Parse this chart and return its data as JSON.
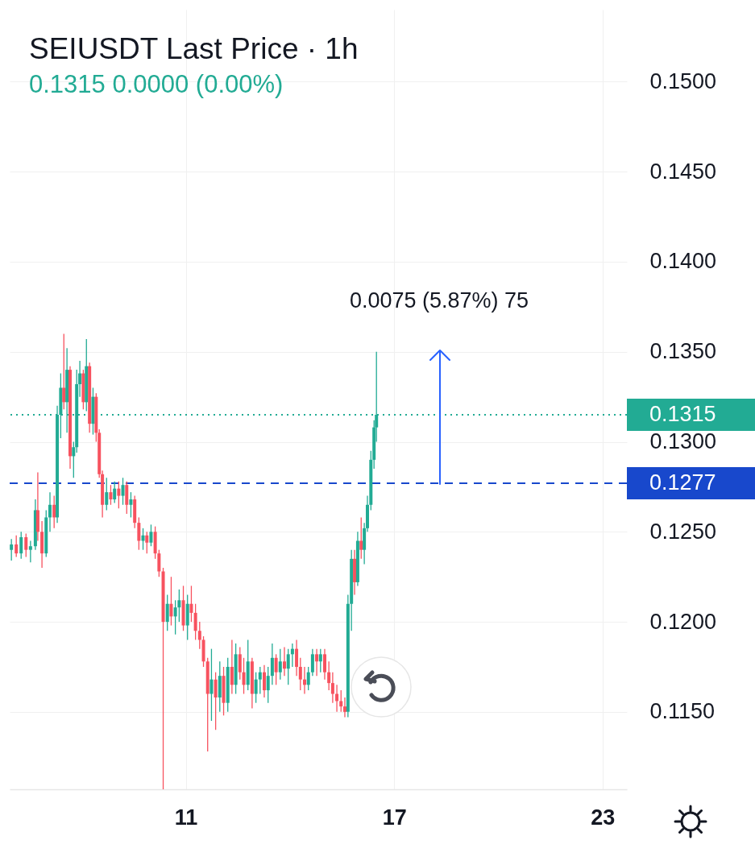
{
  "chart_data": {
    "type": "candlestick",
    "title": "SEIUSDT Last Price · 1h",
    "subtitle": "0.1315 0.0000 (0.00%)",
    "x": [
      5.98,
      6.12,
      6.26,
      6.4,
      6.53,
      6.67,
      6.74,
      6.86,
      6.98,
      7.09,
      7.21,
      7.3,
      7.4,
      7.49,
      7.58,
      7.67,
      7.77,
      7.86,
      7.95,
      8.05,
      8.14,
      8.23,
      8.33,
      8.42,
      8.51,
      8.6,
      8.72,
      8.84,
      8.95,
      9.07,
      9.19,
      9.3,
      9.42,
      9.53,
      9.65,
      9.77,
      9.88,
      10.0,
      10.12,
      10.23,
      10.35,
      10.47,
      10.58,
      10.7,
      10.81,
      10.93,
      11.05,
      11.16,
      11.28,
      11.4,
      11.51,
      11.63,
      11.74,
      11.86,
      11.98,
      12.09,
      12.21,
      12.33,
      12.44,
      12.56,
      12.67,
      12.79,
      12.91,
      13.02,
      13.14,
      13.26,
      13.37,
      13.49,
      13.6,
      13.72,
      13.84,
      13.95,
      14.07,
      14.19,
      14.3,
      14.42,
      14.53,
      14.65,
      14.77,
      14.88,
      15.0,
      15.12,
      15.23,
      15.35,
      15.47,
      15.58,
      15.67,
      15.77,
      15.86,
      15.95,
      16.05,
      16.14,
      16.23,
      16.33,
      16.42,
      16.49
    ],
    "ohlc": [
      [
        0.124,
        0.1246,
        0.1234,
        0.1243
      ],
      [
        0.1243,
        0.1248,
        0.1236,
        0.1238
      ],
      [
        0.1238,
        0.125,
        0.1235,
        0.1247
      ],
      [
        0.1247,
        0.1249,
        0.1236,
        0.124
      ],
      [
        0.124,
        0.1245,
        0.1233,
        0.1242
      ],
      [
        0.1242,
        0.1268,
        0.124,
        0.1262
      ],
      [
        0.1262,
        0.1283,
        0.1245,
        0.125
      ],
      [
        0.125,
        0.1256,
        0.123,
        0.1238
      ],
      [
        0.1238,
        0.1262,
        0.1236,
        0.1258
      ],
      [
        0.1258,
        0.1272,
        0.125,
        0.1265
      ],
      [
        0.1265,
        0.127,
        0.1252,
        0.1258
      ],
      [
        0.1258,
        0.132,
        0.1255,
        0.1315
      ],
      [
        0.1315,
        0.1338,
        0.1302,
        0.133
      ],
      [
        0.133,
        0.136,
        0.1318,
        0.1322
      ],
      [
        0.1322,
        0.1352,
        0.1305,
        0.134
      ],
      [
        0.134,
        0.1342,
        0.1285,
        0.1292
      ],
      [
        0.1292,
        0.13,
        0.128,
        0.1297
      ],
      [
        0.1297,
        0.134,
        0.1294,
        0.1332
      ],
      [
        0.1332,
        0.1345,
        0.1325,
        0.1338
      ],
      [
        0.1338,
        0.134,
        0.1318,
        0.1322
      ],
      [
        0.1322,
        0.1357,
        0.1317,
        0.1342
      ],
      [
        0.1342,
        0.1344,
        0.1305,
        0.131
      ],
      [
        0.131,
        0.133,
        0.1304,
        0.1325
      ],
      [
        0.1325,
        0.1327,
        0.13,
        0.1305
      ],
      [
        0.1305,
        0.1307,
        0.128,
        0.1282
      ],
      [
        0.1282,
        0.1284,
        0.1258,
        0.1265
      ],
      [
        0.1265,
        0.128,
        0.1262,
        0.1272
      ],
      [
        0.1272,
        0.1276,
        0.1265,
        0.1268
      ],
      [
        0.1268,
        0.1278,
        0.1266,
        0.1274
      ],
      [
        0.1274,
        0.1278,
        0.1263,
        0.127
      ],
      [
        0.127,
        0.128,
        0.1265,
        0.1276
      ],
      [
        0.1276,
        0.1278,
        0.126,
        0.1265
      ],
      [
        0.1265,
        0.1272,
        0.1258,
        0.1268
      ],
      [
        0.1268,
        0.127,
        0.1252,
        0.1255
      ],
      [
        0.1255,
        0.1258,
        0.124,
        0.1245
      ],
      [
        0.1245,
        0.1252,
        0.124,
        0.1248
      ],
      [
        0.1248,
        0.125,
        0.1238,
        0.1244
      ],
      [
        0.1244,
        0.1254,
        0.1242,
        0.125
      ],
      [
        0.125,
        0.1253,
        0.1235,
        0.1238
      ],
      [
        0.1238,
        0.124,
        0.1225,
        0.1228
      ],
      [
        0.1228,
        0.123,
        0.1107,
        0.12
      ],
      [
        0.12,
        0.1215,
        0.1195,
        0.121
      ],
      [
        0.121,
        0.1225,
        0.1198,
        0.1203
      ],
      [
        0.1203,
        0.1212,
        0.1193,
        0.1208
      ],
      [
        0.1208,
        0.1218,
        0.12,
        0.1212
      ],
      [
        0.1212,
        0.122,
        0.1195,
        0.1198
      ],
      [
        0.1198,
        0.1215,
        0.119,
        0.121
      ],
      [
        0.121,
        0.122,
        0.12,
        0.1205
      ],
      [
        0.1205,
        0.121,
        0.119,
        0.1195
      ],
      [
        0.1195,
        0.12,
        0.1185,
        0.119
      ],
      [
        0.119,
        0.1192,
        0.1175,
        0.1178
      ],
      [
        0.1178,
        0.118,
        0.1128,
        0.116
      ],
      [
        0.116,
        0.1185,
        0.1145,
        0.1168
      ],
      [
        0.1168,
        0.1172,
        0.114,
        0.1158
      ],
      [
        0.1158,
        0.1178,
        0.115,
        0.117
      ],
      [
        0.117,
        0.1175,
        0.1148,
        0.1155
      ],
      [
        0.1155,
        0.118,
        0.115,
        0.1175
      ],
      [
        0.1175,
        0.119,
        0.116,
        0.1165
      ],
      [
        0.1165,
        0.1188,
        0.116,
        0.1182
      ],
      [
        0.1182,
        0.1186,
        0.1168,
        0.1172
      ],
      [
        0.1172,
        0.118,
        0.116,
        0.1165
      ],
      [
        0.1165,
        0.119,
        0.1162,
        0.1178
      ],
      [
        0.1178,
        0.118,
        0.1152,
        0.116
      ],
      [
        0.116,
        0.1172,
        0.1155,
        0.1168
      ],
      [
        0.1168,
        0.1175,
        0.116,
        0.1172
      ],
      [
        0.1172,
        0.1176,
        0.1158,
        0.1162
      ],
      [
        0.1162,
        0.1175,
        0.1155,
        0.117
      ],
      [
        0.117,
        0.1188,
        0.1165,
        0.118
      ],
      [
        0.118,
        0.1182,
        0.1165,
        0.1172
      ],
      [
        0.1172,
        0.1185,
        0.1168,
        0.1178
      ],
      [
        0.1178,
        0.1186,
        0.117,
        0.1174
      ],
      [
        0.1174,
        0.1185,
        0.1165,
        0.1182
      ],
      [
        0.1182,
        0.1188,
        0.1175,
        0.1185
      ],
      [
        0.1185,
        0.119,
        0.117,
        0.1175
      ],
      [
        0.1175,
        0.118,
        0.1162,
        0.1168
      ],
      [
        0.1168,
        0.1175,
        0.116,
        0.1165
      ],
      [
        0.1165,
        0.1175,
        0.1162,
        0.1172
      ],
      [
        0.1172,
        0.1185,
        0.117,
        0.1182
      ],
      [
        0.1182,
        0.1185,
        0.117,
        0.1178
      ],
      [
        0.1178,
        0.1185,
        0.1172,
        0.1182
      ],
      [
        0.1182,
        0.1185,
        0.1168,
        0.1172
      ],
      [
        0.1172,
        0.1178,
        0.1162,
        0.1166
      ],
      [
        0.1166,
        0.1172,
        0.1155,
        0.116
      ],
      [
        0.116,
        0.1165,
        0.115,
        0.1156
      ],
      [
        0.1156,
        0.1162,
        0.115,
        0.1153
      ],
      [
        0.1153,
        0.1158,
        0.1147,
        0.115
      ],
      [
        0.115,
        0.1215,
        0.1147,
        0.121
      ],
      [
        0.121,
        0.124,
        0.1195,
        0.1235
      ],
      [
        0.1235,
        0.124,
        0.1215,
        0.1222
      ],
      [
        0.1222,
        0.125,
        0.122,
        0.1245
      ],
      [
        0.1245,
        0.1258,
        0.1235,
        0.124
      ],
      [
        0.124,
        0.1255,
        0.1232,
        0.1252
      ],
      [
        0.1252,
        0.127,
        0.125,
        0.1265
      ],
      [
        0.1265,
        0.1295,
        0.1262,
        0.129
      ],
      [
        0.129,
        0.1312,
        0.1285,
        0.1308
      ],
      [
        0.1308,
        0.135,
        0.13,
        0.1315
      ]
    ],
    "colors": [
      "#22ab94",
      "#f7525f",
      "#22ab94",
      "#f7525f",
      "#22ab94",
      "#22ab94",
      "#f7525f",
      "#f7525f",
      "#22ab94",
      "#22ab94",
      "#f7525f",
      "#22ab94",
      "#22ab94",
      "#f7525f",
      "#22ab94",
      "#f7525f",
      "#22ab94",
      "#22ab94",
      "#22ab94",
      "#f7525f",
      "#22ab94",
      "#f7525f",
      "#22ab94",
      "#f7525f",
      "#f7525f",
      "#f7525f",
      "#22ab94",
      "#f7525f",
      "#22ab94",
      "#f7525f",
      "#22ab94",
      "#f7525f",
      "#22ab94",
      "#f7525f",
      "#f7525f",
      "#22ab94",
      "#f7525f",
      "#22ab94",
      "#f7525f",
      "#f7525f",
      "#f7525f",
      "#22ab94",
      "#f7525f",
      "#22ab94",
      "#22ab94",
      "#f7525f",
      "#22ab94",
      "#f7525f",
      "#f7525f",
      "#f7525f",
      "#f7525f",
      "#f7525f",
      "#22ab94",
      "#f7525f",
      "#22ab94",
      "#f7525f",
      "#22ab94",
      "#f7525f",
      "#22ab94",
      "#f7525f",
      "#f7525f",
      "#22ab94",
      "#f7525f",
      "#22ab94",
      "#22ab94",
      "#f7525f",
      "#22ab94",
      "#22ab94",
      "#f7525f",
      "#22ab94",
      "#f7525f",
      "#22ab94",
      "#22ab94",
      "#f7525f",
      "#f7525f",
      "#f7525f",
      "#22ab94",
      "#22ab94",
      "#f7525f",
      "#22ab94",
      "#f7525f",
      "#f7525f",
      "#f7525f",
      "#f7525f",
      "#f7525f",
      "#f7525f",
      "#22ab94",
      "#22ab94",
      "#f7525f",
      "#22ab94",
      "#f7525f",
      "#22ab94",
      "#22ab94",
      "#22ab94",
      "#22ab94",
      "#22ab94"
    ],
    "xlim": [
      5.93,
      23.7
    ],
    "xticks": [
      11,
      17,
      23
    ],
    "ylim": [
      0.1107,
      0.154
    ],
    "yticks": [
      {
        "value": 0.115,
        "label": "0.1150"
      },
      {
        "value": 0.12,
        "label": "0.1200"
      },
      {
        "value": 0.125,
        "label": "0.1250"
      },
      {
        "value": 0.13,
        "label": "0.1300"
      },
      {
        "value": 0.135,
        "label": "0.1350"
      },
      {
        "value": 0.14,
        "label": "0.1400"
      },
      {
        "value": 0.145,
        "label": "0.1450"
      },
      {
        "value": 0.15,
        "label": "0.1500"
      }
    ],
    "grid": true,
    "ref_lines": [
      {
        "axis": "y",
        "value": 0.1315,
        "label": "0.1315",
        "color": "#22ab94",
        "line_style": "dotted"
      },
      {
        "axis": "y",
        "value": 0.1277,
        "label": "0.1277",
        "color": "#1848cc",
        "line_style": "dashed"
      }
    ],
    "annotations": [
      "0.0075 (5.87%) 75"
    ]
  }
}
